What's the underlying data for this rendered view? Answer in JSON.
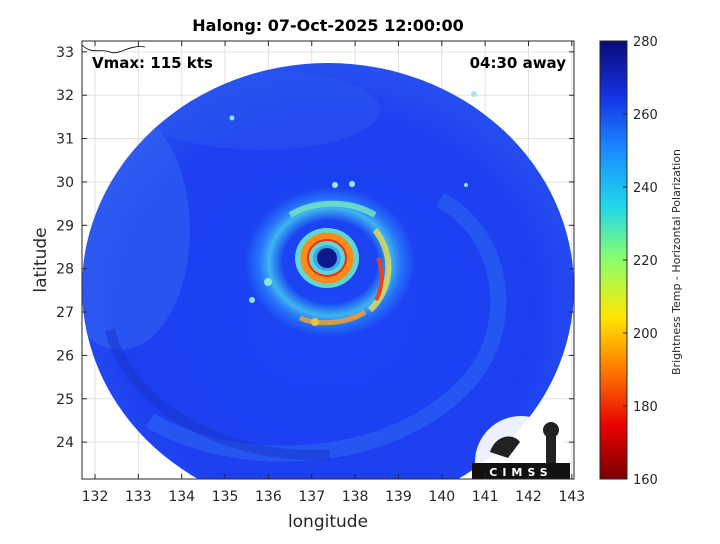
{
  "chart_data": {
    "type": "heatmap",
    "title": "Halong: 07-Oct-2025 12:00:00",
    "xlabel": "longitude",
    "ylabel": "latitude",
    "xlim": [
      131.7,
      143.05
    ],
    "ylim": [
      23.15,
      33.25
    ],
    "x_ticks": [
      132,
      133,
      134,
      135,
      136,
      137,
      138,
      139,
      140,
      141,
      142,
      143
    ],
    "y_ticks": [
      24,
      25,
      26,
      27,
      28,
      29,
      30,
      31,
      32,
      33
    ],
    "grid": true,
    "annotations": {
      "vmax": "Vmax: 115 kts",
      "time_away": "04:30 away"
    },
    "storm_center": {
      "lon": 137.3,
      "lat": 28.15
    },
    "colorbar": {
      "label": "Brightness Temp - Horizontal Polarization",
      "min": 160,
      "max": 280,
      "ticks": [
        160,
        180,
        200,
        220,
        240,
        260,
        280
      ]
    },
    "logo_text": "CIMSS",
    "colors": {
      "background_field": "#1e3cf0",
      "deep_blue": "#1426d8",
      "eye": "#0a1a8a",
      "eyewall": "#ff8a1a",
      "band_cyan": "#38d0e8"
    }
  }
}
